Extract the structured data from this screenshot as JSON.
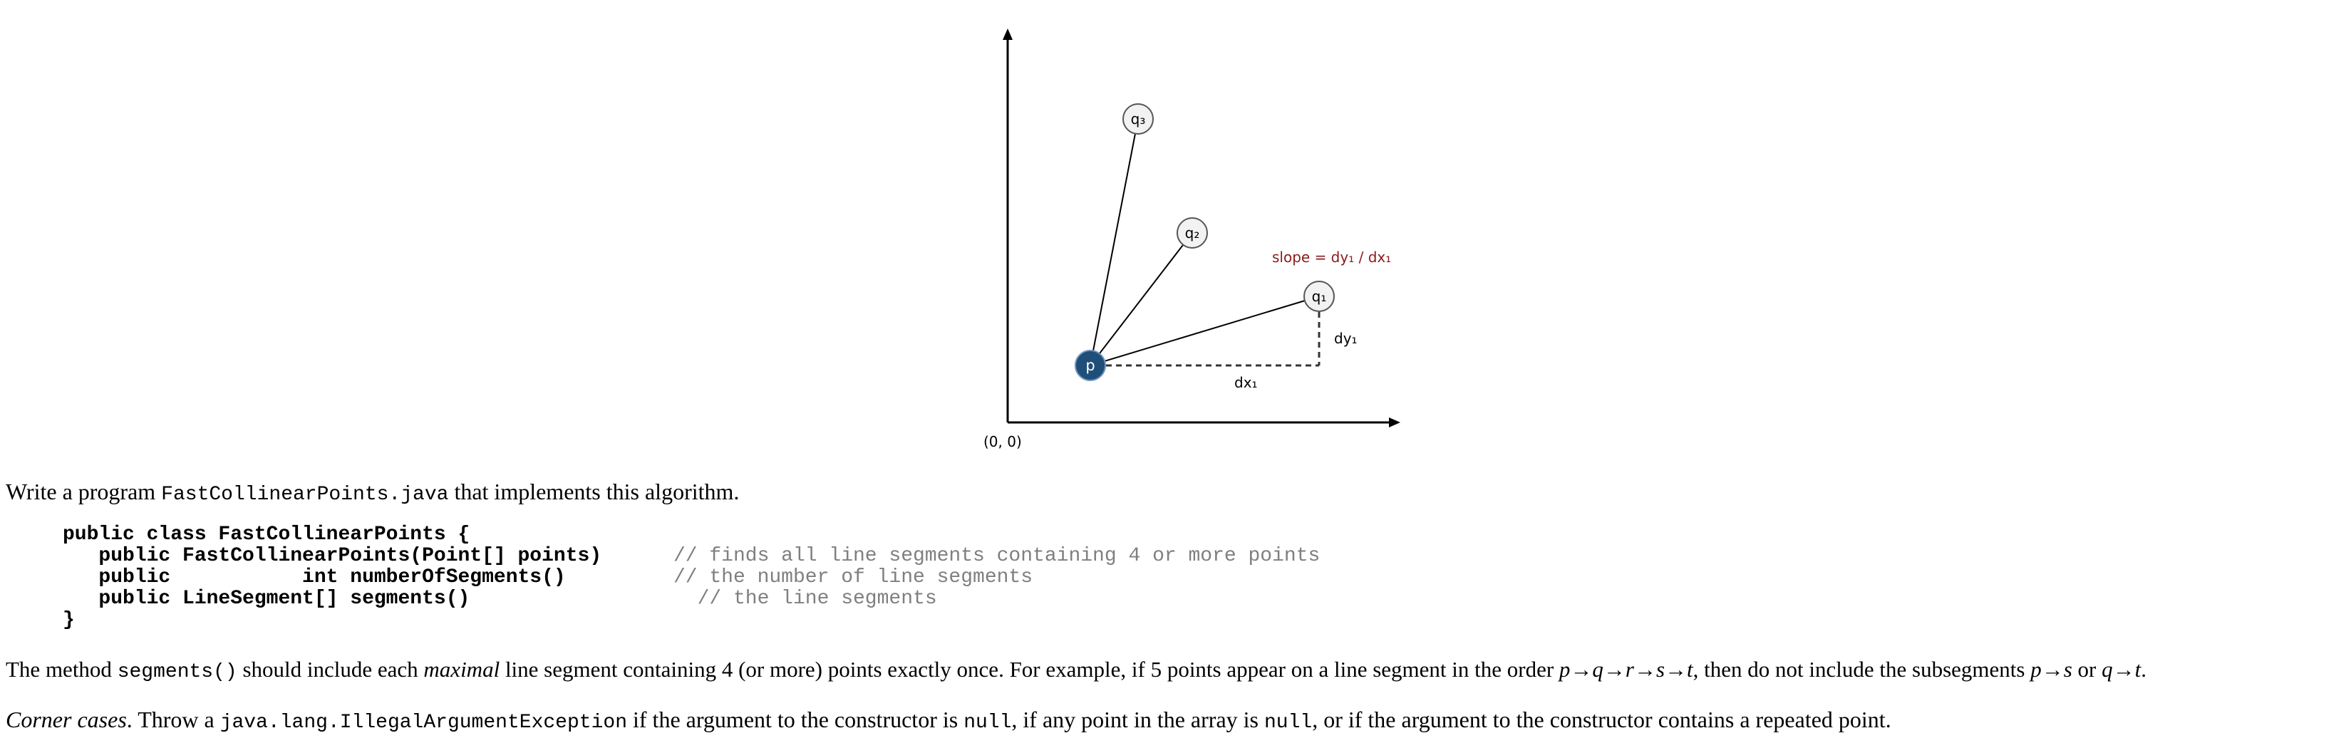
{
  "figure": {
    "origin_label": "(0, 0)",
    "point_p": "p",
    "point_q1": "q₁",
    "point_q2": "q₂",
    "point_q3": "q₃",
    "slope_label": "slope = dy₁ / dx₁",
    "dx_label": "dx₁",
    "dy_label": "dy₁",
    "colors": {
      "p_fill": "#1f4e79",
      "q_fill": "#f2f2f2",
      "slope_text": "#8b1a1a",
      "axis": "#000000"
    }
  },
  "intro": {
    "prefix": "Write a program ",
    "filename": "FastCollinearPoints.java",
    "suffix": " that implements this algorithm."
  },
  "code": {
    "line1": "public class FastCollinearPoints {",
    "line2": "   public FastCollinearPoints(Point[] points)",
    "line2_comment": "// finds all line segments containing 4 or more points",
    "line3": "   public           int numberOfSegments()",
    "line3_comment": "// the number of line segments",
    "line4": "   public LineSegment[] segments()",
    "line4_comment": "// the line segments",
    "line5": "}"
  },
  "segments_para": {
    "t1": "The method ",
    "method": "segments()",
    "t2": " should include each ",
    "maximal": "maximal",
    "t3": " line segment containing 4 (or more) points exactly once. For example, if 5 points appear on a line segment in the order ",
    "order": "p→q→r→s→t",
    "t4": ", then do not include the subsegments ",
    "sub1": "p→s",
    "t5": " or ",
    "sub2": "q→t",
    "t6": "."
  },
  "corner_para": {
    "heading": "Corner cases",
    "t1": ". Throw a ",
    "exception": "java.lang.IllegalArgumentException",
    "t2": " if the argument to the constructor is ",
    "null1": "null",
    "t3": ", if any point in the array is ",
    "null2": "null",
    "t4": ", or if the argument to the constructor contains a repeated point."
  }
}
